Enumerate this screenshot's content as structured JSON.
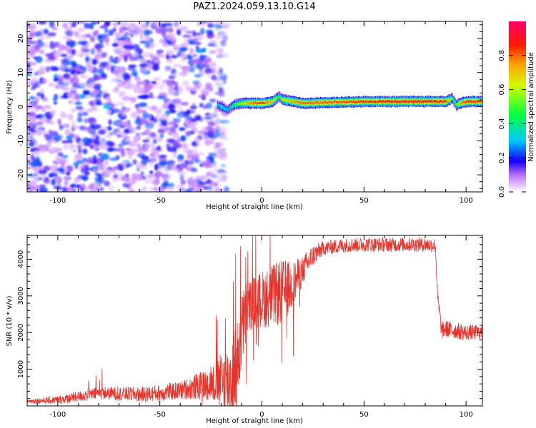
{
  "title": "PAZ1.2024.059.13.10.G14",
  "chart_data": [
    {
      "type": "heatmap",
      "xlabel": "Height of straight line (km)",
      "ylabel": "Frequency (Hz)",
      "xlim": [
        -115,
        108
      ],
      "ylim": [
        -25,
        25
      ],
      "xticks": [
        -100,
        -50,
        0,
        50,
        100
      ],
      "yticks": [
        -20,
        -10,
        0,
        10,
        20
      ],
      "colorbar": {
        "label": "Normalized spectral amplitude",
        "range": [
          0,
          1
        ],
        "ticks": [
          0.0,
          0.2,
          0.4,
          0.6,
          0.8
        ]
      },
      "signal_track": {
        "x": [
          -22,
          -20,
          -17,
          -14,
          -10,
          -5,
          0,
          5,
          8,
          10,
          15,
          20,
          30,
          50,
          70,
          90,
          93,
          95,
          97,
          100,
          108
        ],
        "frequency": [
          0.5,
          0.0,
          -1.0,
          0.5,
          1.0,
          1.0,
          1.0,
          1.5,
          3.0,
          2.0,
          1.5,
          1.0,
          1.2,
          1.5,
          1.5,
          1.5,
          2.5,
          0.5,
          1.0,
          1.5,
          1.5
        ],
        "amplitude": [
          0.3,
          0.4,
          0.3,
          0.45,
          0.6,
          0.8,
          0.85,
          0.7,
          0.45,
          0.6,
          0.75,
          0.8,
          0.8,
          0.85,
          0.9,
          0.85,
          0.45,
          0.5,
          0.75,
          0.85,
          0.85
        ]
      }
    },
    {
      "type": "line",
      "xlabel": "Height of straight line (km)",
      "ylabel": "SNR (10 * v/v)",
      "xlim": [
        -115,
        108
      ],
      "ylim": [
        0,
        4650
      ],
      "xticks": [
        -100,
        -50,
        0,
        50,
        100
      ],
      "yticks": [
        1000,
        2000,
        3000,
        4000
      ],
      "color": "#e8322a",
      "envelope": {
        "x": [
          -115,
          -100,
          -90,
          -80,
          -70,
          -60,
          -50,
          -40,
          -30,
          -25,
          -20,
          -15,
          -12,
          -10,
          -8,
          -5,
          0,
          5,
          10,
          15,
          20,
          25,
          30,
          40,
          50,
          60,
          70,
          80,
          85,
          86,
          88,
          90,
          95,
          100,
          108
        ],
        "y": [
          130,
          160,
          250,
          350,
          330,
          310,
          350,
          420,
          550,
          600,
          650,
          700,
          1200,
          2000,
          2500,
          2800,
          2900,
          3000,
          3100,
          3300,
          3700,
          4100,
          4300,
          4380,
          4400,
          4400,
          4400,
          4400,
          4380,
          3000,
          2050,
          2100,
          2050,
          2000,
          2000
        ]
      },
      "noise_amplitude": {
        "x": [
          -115,
          -90,
          -40,
          -25,
          -14,
          -10,
          -5,
          0,
          10,
          20,
          30,
          85,
          88,
          108
        ],
        "y": [
          60,
          150,
          250,
          450,
          1200,
          1100,
          700,
          800,
          900,
          400,
          200,
          200,
          250,
          200
        ]
      }
    }
  ]
}
